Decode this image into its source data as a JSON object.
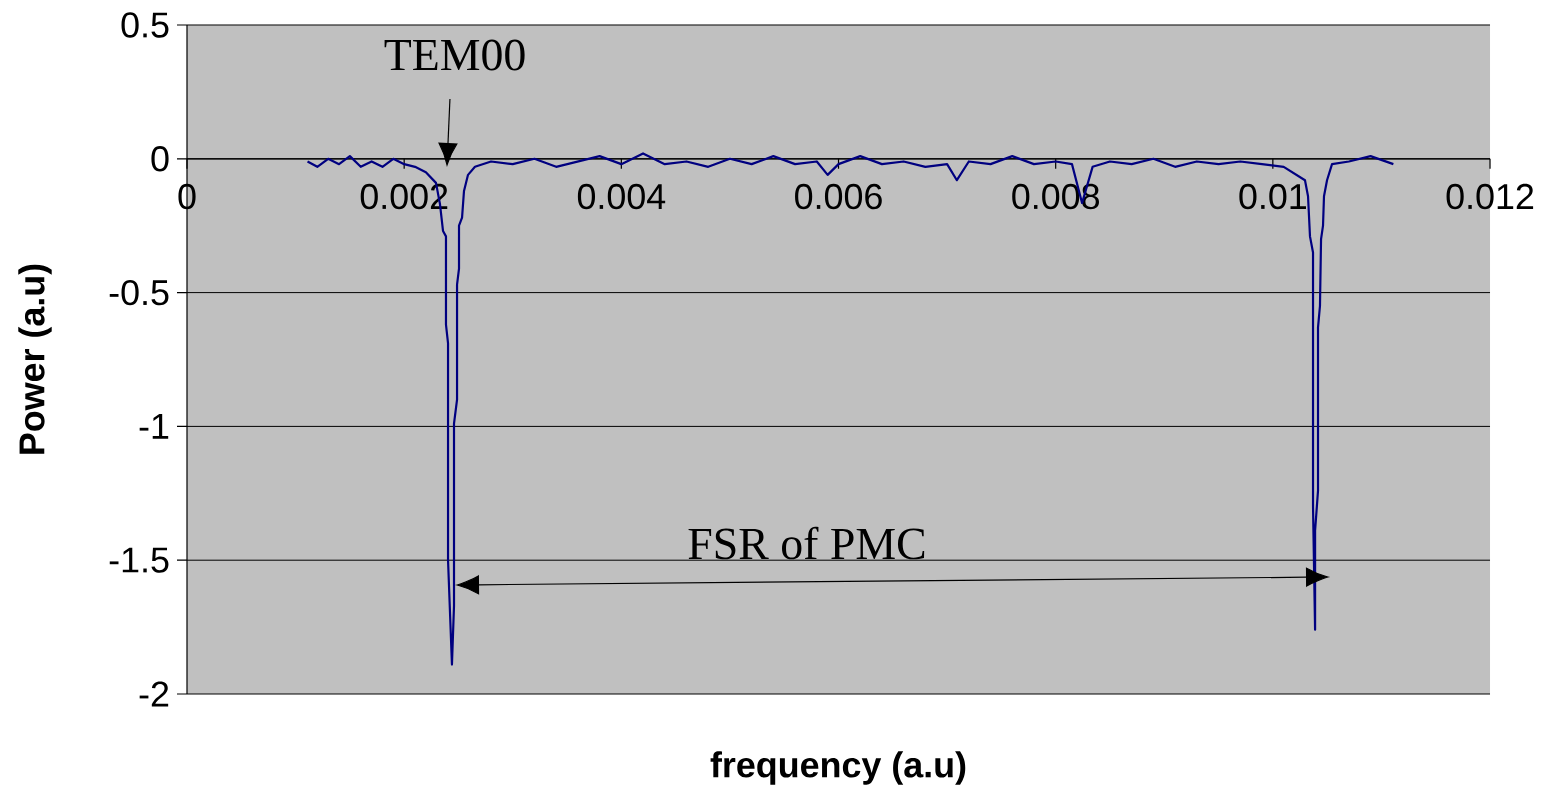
{
  "chart_data": {
    "type": "line",
    "xlabel": "frequency (a.u)",
    "ylabel": "Power (a.u)",
    "xlim": [
      0,
      0.012
    ],
    "ylim": [
      -2,
      0.5
    ],
    "xticks": [
      0,
      0.002,
      0.004,
      0.006,
      0.008,
      0.01,
      0.012
    ],
    "yticks": [
      -2,
      -1.5,
      -1,
      -0.5,
      0,
      0.5
    ],
    "grid": "y",
    "marker": "none",
    "line_style": "solid",
    "annotations": [
      "TEM00",
      "FSR of PMC"
    ],
    "series": [
      {
        "color": "#000080",
        "x": [
          0.00111,
          0.0012,
          0.0013,
          0.0014,
          0.0015,
          0.0016,
          0.0017,
          0.0018,
          0.0019,
          0.002,
          0.0021,
          0.0022,
          0.002293,
          0.00233,
          0.002358,
          0.002385,
          0.002385,
          0.002404,
          0.002404,
          0.00244,
          0.002459,
          0.002459,
          0.002487,
          0.002487,
          0.002505,
          0.002505,
          0.002533,
          0.002551,
          0.002588,
          0.002652,
          0.0028,
          0.003,
          0.0032,
          0.0034,
          0.0036,
          0.0038,
          0.004,
          0.0042,
          0.0044,
          0.0046,
          0.0048,
          0.005,
          0.0052,
          0.0054,
          0.0056,
          0.0058,
          0.0059,
          0.006,
          0.0062,
          0.0064,
          0.0066,
          0.0068,
          0.007,
          0.00709,
          0.0072,
          0.0074,
          0.0076,
          0.0078,
          0.008,
          0.00815,
          0.008243,
          0.00834,
          0.0085,
          0.0087,
          0.0089,
          0.0091,
          0.0093,
          0.0095,
          0.0097,
          0.0099,
          0.0101,
          0.010296,
          0.010324,
          0.010342,
          0.01037,
          0.01037,
          0.010389,
          0.010389,
          0.010416,
          0.010416,
          0.010434,
          0.010444,
          0.010462,
          0.010471,
          0.010499,
          0.010545,
          0.0107,
          0.0109,
          0.01111
        ],
        "values": [
          -0.01,
          -0.03,
          0.0,
          -0.02,
          0.01,
          -0.03,
          -0.01,
          -0.03,
          0.0,
          -0.02,
          -0.03,
          -0.05,
          -0.09,
          -0.17,
          -0.27,
          -0.29,
          -0.62,
          -0.69,
          -1.5,
          -1.89,
          -1.67,
          -0.99,
          -0.9,
          -0.47,
          -0.41,
          -0.25,
          -0.22,
          -0.12,
          -0.06,
          -0.03,
          -0.01,
          -0.02,
          0.0,
          -0.03,
          -0.01,
          0.01,
          -0.02,
          0.02,
          -0.02,
          -0.01,
          -0.03,
          0.0,
          -0.02,
          0.01,
          -0.02,
          -0.01,
          -0.06,
          -0.02,
          0.01,
          -0.02,
          -0.01,
          -0.03,
          -0.02,
          -0.08,
          -0.01,
          -0.02,
          0.01,
          -0.02,
          -0.01,
          -0.02,
          -0.165,
          -0.03,
          -0.01,
          -0.02,
          0.0,
          -0.03,
          -0.01,
          -0.02,
          -0.01,
          -0.02,
          -0.03,
          -0.08,
          -0.14,
          -0.29,
          -0.35,
          -1.3,
          -1.76,
          -1.39,
          -1.24,
          -0.63,
          -0.55,
          -0.3,
          -0.25,
          -0.14,
          -0.08,
          -0.02,
          -0.01,
          0.01,
          -0.02
        ]
      }
    ]
  }
}
